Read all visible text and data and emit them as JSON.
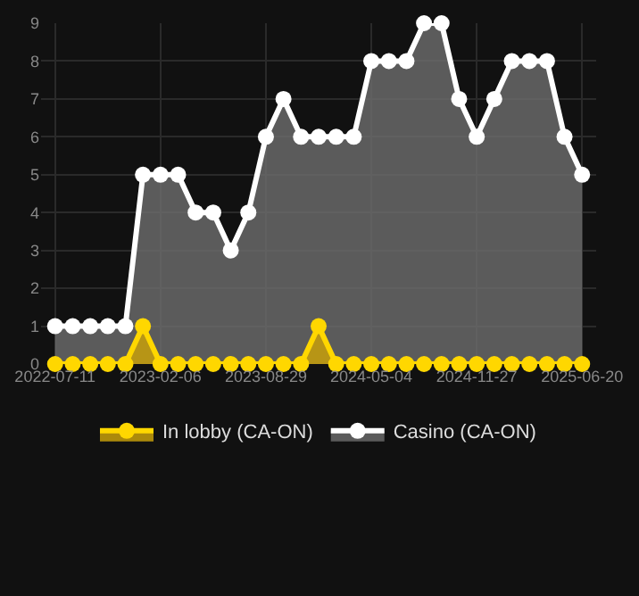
{
  "chart_data": {
    "type": "area",
    "categories": [
      "2022-07-11",
      null,
      null,
      null,
      null,
      null,
      "2023-02-06",
      null,
      null,
      null,
      null,
      null,
      "2023-08-29",
      null,
      null,
      null,
      null,
      null,
      "2024-05-04",
      null,
      null,
      null,
      null,
      null,
      "2024-11-27",
      null,
      null,
      null,
      null,
      null,
      "2025-06-20"
    ],
    "series": [
      {
        "name": "In lobby (CA-ON)",
        "color": "#ffd700",
        "values": [
          0,
          0,
          0,
          0,
          0,
          1,
          0,
          0,
          0,
          0,
          0,
          0,
          0,
          0,
          0,
          1,
          0,
          0,
          0,
          0,
          0,
          0,
          0,
          0,
          0,
          0,
          0,
          0,
          0,
          0,
          0
        ]
      },
      {
        "name": "Casino (CA-ON)",
        "color": "#ffffff",
        "values": [
          1,
          1,
          1,
          1,
          1,
          5,
          5,
          5,
          4,
          4,
          3,
          4,
          6,
          7,
          6,
          6,
          6,
          6,
          8,
          8,
          8,
          9,
          9,
          7,
          6,
          7,
          8,
          8,
          8,
          6,
          5
        ]
      }
    ],
    "ylim": [
      0,
      9
    ],
    "yticks": [
      0,
      1,
      2,
      3,
      4,
      5,
      6,
      7,
      8,
      9
    ],
    "grid": true,
    "legend": "bottom",
    "marker": "circle"
  }
}
